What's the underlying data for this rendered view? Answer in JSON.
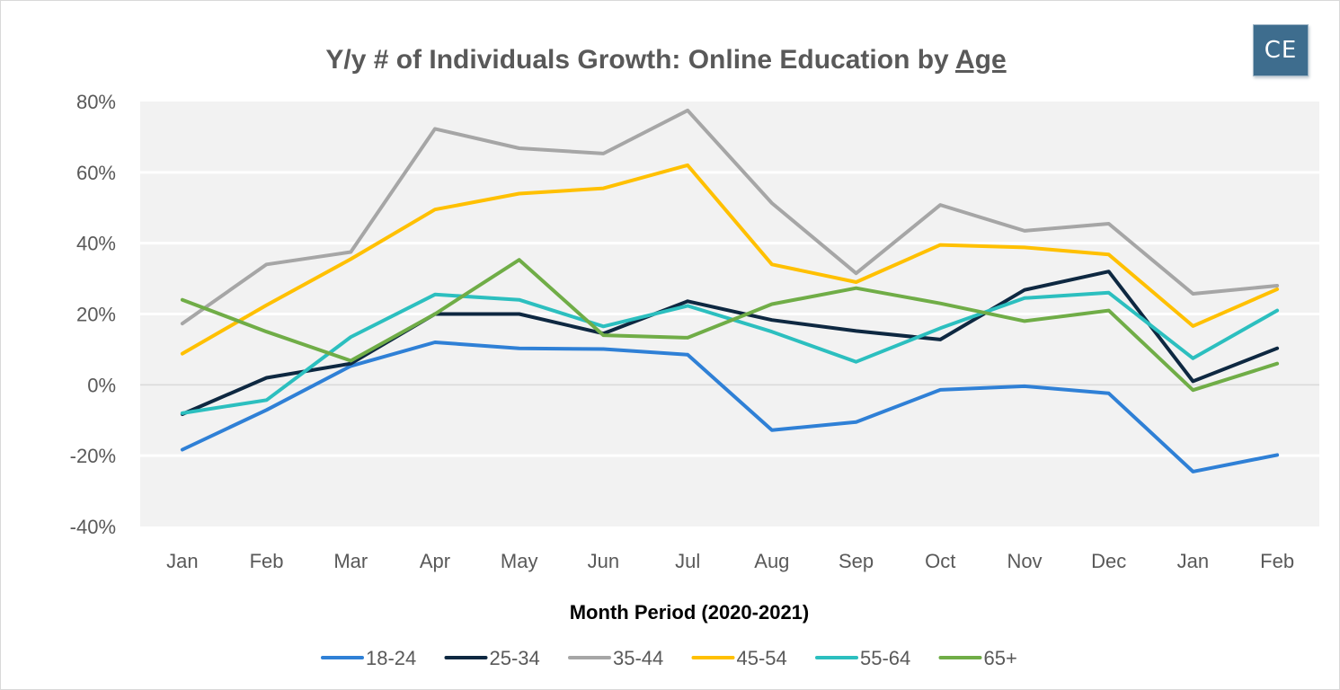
{
  "colors": {
    "plot_background": "#f2f2f2",
    "gridline": "#ffffff",
    "zero_line": "#d9d9d9",
    "logo_background": "#3e6d8e"
  },
  "logo": {
    "text": "CE"
  },
  "chart_data": {
    "type": "line",
    "title_prefix": "Y/y # of Individuals Growth: Online Education by ",
    "title_emphasis": "Age",
    "xlabel": "Month Period (2020-2021)",
    "ylabel": "",
    "ylim": [
      -40,
      80
    ],
    "yticks": [
      -40,
      -20,
      0,
      20,
      40,
      60,
      80
    ],
    "ytick_labels": [
      "-40%",
      "-20%",
      "0%",
      "20%",
      "40%",
      "60%",
      "80%"
    ],
    "categories": [
      "Jan",
      "Feb",
      "Mar",
      "Apr",
      "May",
      "Jun",
      "Jul",
      "Aug",
      "Sep",
      "Oct",
      "Nov",
      "Dec",
      "Jan",
      "Feb"
    ],
    "grid": true,
    "legend": "bottom",
    "series": [
      {
        "name": "18-24",
        "color": "#2f80d6",
        "values": [
          -18.3,
          -7.1,
          5.3,
          12.0,
          10.3,
          10.1,
          8.5,
          -12.8,
          -10.5,
          -1.4,
          -0.4,
          -2.4,
          -24.5,
          -19.8
        ]
      },
      {
        "name": "25-34",
        "color": "#0e2841",
        "values": [
          -8.3,
          2.0,
          6.0,
          20.0,
          20.0,
          14.5,
          23.6,
          18.3,
          15.2,
          12.8,
          26.8,
          32.0,
          1.0,
          10.3
        ]
      },
      {
        "name": "35-44",
        "color": "#a6a6a6",
        "values": [
          17.3,
          34.0,
          37.5,
          72.3,
          66.8,
          65.3,
          77.5,
          51.3,
          31.5,
          50.8,
          43.5,
          45.5,
          25.7,
          28.0
        ]
      },
      {
        "name": "45-54",
        "color": "#ffc000",
        "values": [
          8.8,
          22.5,
          35.5,
          49.5,
          54.0,
          55.5,
          62.0,
          34.0,
          29.0,
          39.5,
          38.8,
          36.8,
          16.6,
          27.0
        ]
      },
      {
        "name": "55-64",
        "color": "#2cbfbf",
        "values": [
          -8.0,
          -4.3,
          13.5,
          25.5,
          24.0,
          16.5,
          22.3,
          15.0,
          6.5,
          16.0,
          24.5,
          26.0,
          7.5,
          21.0
        ]
      },
      {
        "name": "65+",
        "color": "#70ad47",
        "values": [
          24.0,
          15.0,
          6.8,
          20.0,
          35.3,
          14.0,
          13.3,
          22.8,
          27.3,
          23.0,
          18.0,
          21.0,
          -1.5,
          6.0
        ]
      }
    ]
  }
}
